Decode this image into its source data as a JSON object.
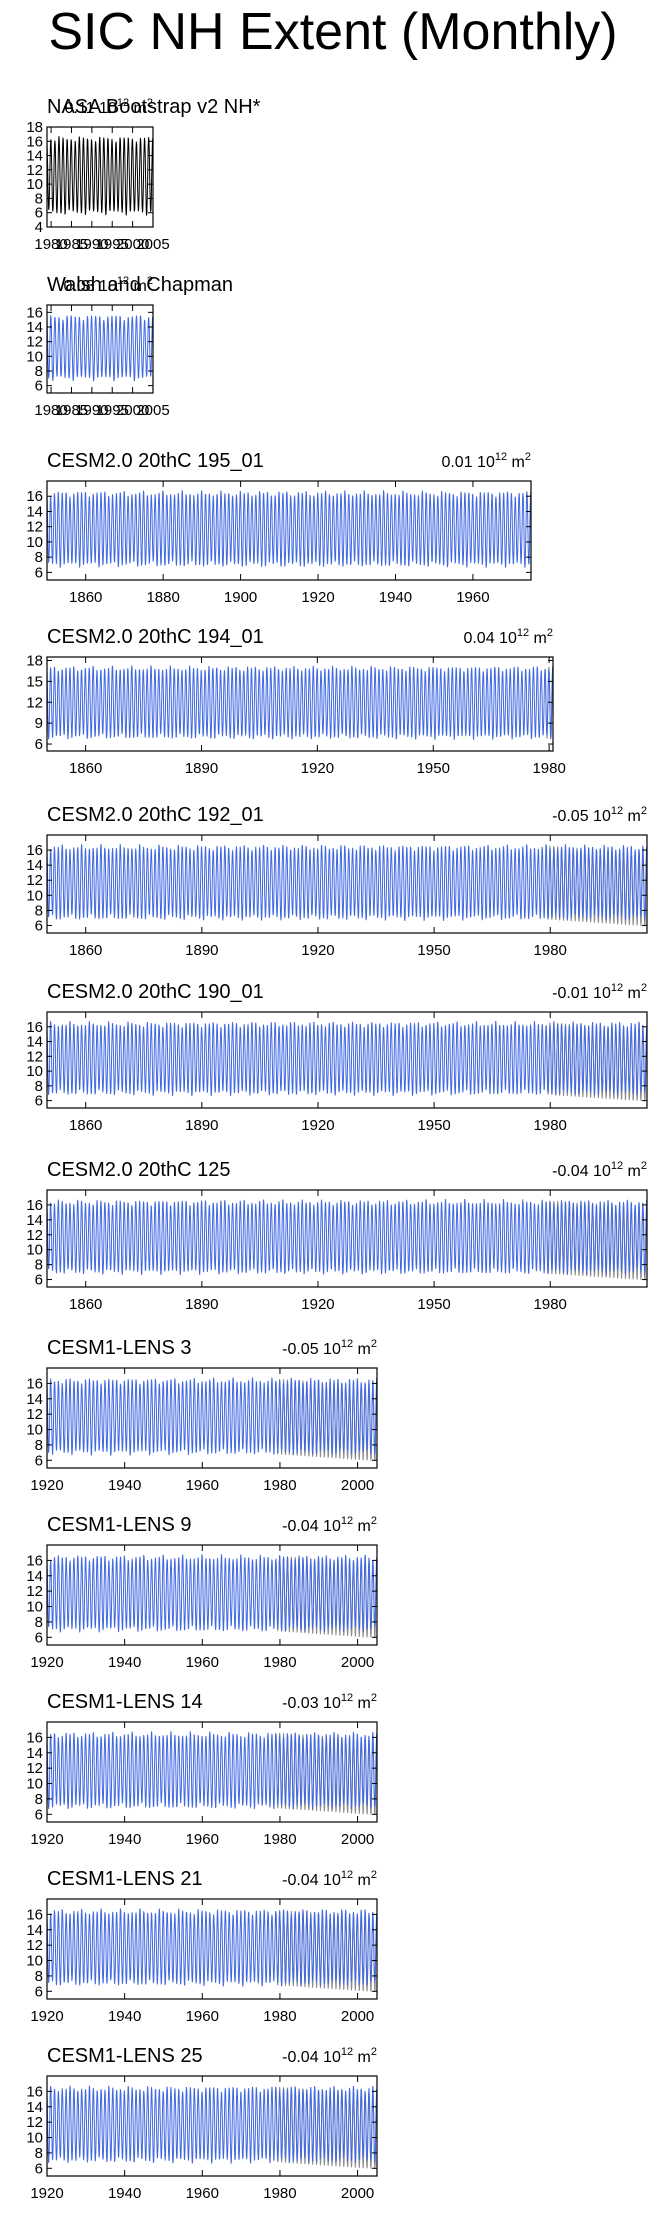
{
  "title": "SIC NH Extent (Monthly)",
  "colors": {
    "model": "#4169e1",
    "observed": "#8c8c8c",
    "obs_black": "#000000",
    "frame": "#000000"
  },
  "panel_units": "10",
  "panel_units_exp": "12",
  "panel_units_tail": "m",
  "panel_units_tail_exp": "2",
  "chart_data": [
    {
      "type": "line",
      "title": "NASA Bootstrap v2 NH*",
      "stat": "0.11",
      "x_range": [
        1979,
        2005
      ],
      "xticks": [
        "1980",
        "1985",
        "1990",
        "1995",
        "2000",
        "2005"
      ],
      "ylim": [
        4,
        18
      ],
      "yticks": [
        4,
        6,
        8,
        10,
        12,
        14,
        16,
        18
      ],
      "series": [
        {
          "values": "monthly cycle, min ~6.5, max ~16"
        }
      ]
    },
    {
      "type": "line",
      "title": "Walsh and Chapman",
      "stat": "0.08",
      "x_range": [
        1979,
        2005
      ],
      "xticks": [
        "1980",
        "1985",
        "1990",
        "1995",
        "2000",
        "2005"
      ],
      "ylim": [
        5,
        17
      ],
      "yticks": [
        6,
        8,
        10,
        12,
        14,
        16
      ],
      "series": [
        {
          "values": "monthly cycle, min ~7, max ~16"
        }
      ]
    },
    {
      "type": "line",
      "title": "CESM2.0 20thC 195_01",
      "stat": "0.01",
      "x_range": [
        1850,
        1975
      ],
      "xticks": [
        "1860",
        "1880",
        "1900",
        "1920",
        "1940",
        "1960"
      ],
      "ylim": [
        5,
        18
      ],
      "yticks": [
        6,
        8,
        10,
        12,
        14,
        16
      ],
      "series": [
        {
          "values": "monthly cycle, min ~7, max ~16"
        }
      ]
    },
    {
      "type": "line",
      "title": "CESM2.0 20thC 194_01",
      "stat": "0.04",
      "x_range": [
        1850,
        1981
      ],
      "xticks": [
        "1860",
        "1890",
        "1920",
        "1950",
        "1980"
      ],
      "ylim": [
        5,
        18.5
      ],
      "yticks": [
        6,
        9,
        12,
        15,
        18
      ],
      "series": [
        {
          "values": "monthly cycle, min ~7.5, max ~16"
        }
      ]
    },
    {
      "type": "line",
      "title": "CESM2.0 20thC 192_01",
      "stat": "-0.05",
      "x_range": [
        1850,
        2005
      ],
      "xticks": [
        "1860",
        "1890",
        "1920",
        "1950",
        "1980"
      ],
      "ylim": [
        5,
        18
      ],
      "yticks": [
        6,
        8,
        10,
        12,
        14,
        16
      ],
      "series": [
        {
          "values": "monthly cycle, min ~7, max ~16"
        }
      ]
    },
    {
      "type": "line",
      "title": "CESM2.0 20thC 190_01",
      "stat": "-0.01",
      "x_range": [
        1850,
        2005
      ],
      "xticks": [
        "1860",
        "1890",
        "1920",
        "1950",
        "1980"
      ],
      "ylim": [
        5,
        18
      ],
      "yticks": [
        6,
        8,
        10,
        12,
        14,
        16
      ],
      "series": [
        {
          "values": "monthly cycle, min ~7, max ~16"
        }
      ]
    },
    {
      "type": "line",
      "title": "CESM2.0 20thC 125",
      "stat": "-0.04",
      "x_range": [
        1850,
        2005
      ],
      "xticks": [
        "1860",
        "1890",
        "1920",
        "1950",
        "1980"
      ],
      "ylim": [
        5,
        18
      ],
      "yticks": [
        6,
        8,
        10,
        12,
        14,
        16
      ],
      "series": [
        {
          "values": "monthly cycle, min ~7, max ~16"
        }
      ]
    },
    {
      "type": "line",
      "title": "CESM1-LENS 3",
      "stat": "-0.05",
      "x_range": [
        1920,
        2005
      ],
      "xticks": [
        "1920",
        "1940",
        "1960",
        "1980",
        "2000"
      ],
      "ylim": [
        5,
        18
      ],
      "yticks": [
        6,
        8,
        10,
        12,
        14,
        16
      ],
      "series": [
        {
          "values": "monthly cycle, min ~6, max ~16"
        }
      ]
    },
    {
      "type": "line",
      "title": "CESM1-LENS 9",
      "stat": "-0.04",
      "x_range": [
        1920,
        2005
      ],
      "xticks": [
        "1920",
        "1940",
        "1960",
        "1980",
        "2000"
      ],
      "ylim": [
        5,
        18
      ],
      "yticks": [
        6,
        8,
        10,
        12,
        14,
        16
      ],
      "series": [
        {
          "values": "monthly cycle, min ~6, max ~16"
        }
      ]
    },
    {
      "type": "line",
      "title": "CESM1-LENS 14",
      "stat": "-0.03",
      "x_range": [
        1920,
        2005
      ],
      "xticks": [
        "1920",
        "1940",
        "1960",
        "1980",
        "2000"
      ],
      "ylim": [
        5,
        18
      ],
      "yticks": [
        6,
        8,
        10,
        12,
        14,
        16
      ],
      "series": [
        {
          "values": "monthly cycle, min ~6, max ~16"
        }
      ]
    },
    {
      "type": "line",
      "title": "CESM1-LENS 21",
      "stat": "-0.04",
      "x_range": [
        1920,
        2005
      ],
      "xticks": [
        "1920",
        "1940",
        "1960",
        "1980",
        "2000"
      ],
      "ylim": [
        5,
        18
      ],
      "yticks": [
        6,
        8,
        10,
        12,
        14,
        16
      ],
      "series": [
        {
          "values": "monthly cycle, min ~6, max ~16"
        }
      ]
    },
    {
      "type": "line",
      "title": "CESM1-LENS 25",
      "stat": "-0.04",
      "x_range": [
        1920,
        2005
      ],
      "xticks": [
        "1920",
        "1940",
        "1960",
        "1980",
        "2000"
      ],
      "ylim": [
        5,
        18
      ],
      "yticks": [
        6,
        8,
        10,
        12,
        14,
        16
      ],
      "series": [
        {
          "values": "monthly cycle, min ~6, max ~16"
        }
      ]
    }
  ]
}
